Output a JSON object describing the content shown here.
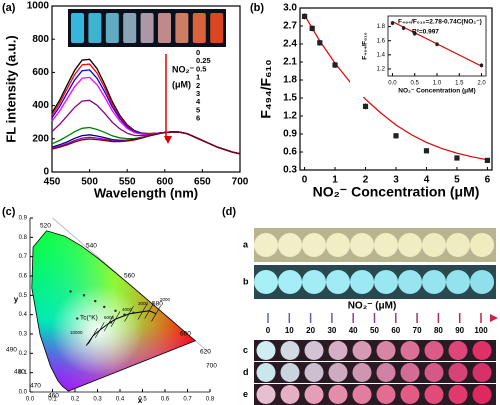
{
  "chart_data": [
    {
      "type": "line",
      "panel_label": "(a)",
      "xlabel": "Wavelength (nm)",
      "ylabel": "FL intensity (a.u.)",
      "legend_title": [
        "NO₂⁻",
        "(μM)"
      ],
      "x": [
        450,
        460,
        470,
        480,
        490,
        500,
        510,
        520,
        530,
        540,
        550,
        560,
        570,
        580,
        590,
        600,
        610,
        620,
        630,
        640,
        650,
        660,
        670,
        680,
        690,
        700
      ],
      "xlim": [
        450,
        700
      ],
      "xticks": [
        450,
        500,
        550,
        600,
        650,
        700
      ],
      "ylim": [
        0,
        1000
      ],
      "yticks": [
        0,
        200,
        400,
        600,
        800,
        1000
      ],
      "series": [
        {
          "name": "0",
          "color": "#000000",
          "values": [
            357,
            431,
            522,
            612,
            674,
            679,
            622,
            529,
            425,
            343,
            284,
            248,
            234,
            232,
            234,
            238,
            242,
            240,
            230,
            210,
            190,
            170,
            150,
            135,
            120,
            110
          ]
        },
        {
          "name": "0.25",
          "color": "#ff0000",
          "values": [
            343,
            413,
            500,
            586,
            645,
            650,
            595,
            508,
            410,
            333,
            278,
            244,
            232,
            231,
            233,
            238,
            242,
            240,
            230,
            210,
            190,
            170,
            150,
            135,
            120,
            110
          ]
        },
        {
          "name": "0.5",
          "color": "#0000ff",
          "values": [
            327,
            393,
            474,
            554,
            610,
            615,
            564,
            484,
            393,
            322,
            271,
            241,
            230,
            230,
            233,
            238,
            242,
            240,
            230,
            210,
            190,
            170,
            150,
            135,
            120,
            110
          ]
        },
        {
          "name": "1",
          "color": "#ff00ff",
          "values": [
            307,
            367,
            440,
            514,
            565,
            570,
            525,
            452,
            370,
            307,
            262,
            236,
            228,
            229,
            233,
            238,
            242,
            240,
            230,
            210,
            190,
            170,
            150,
            135,
            120,
            110
          ]
        },
        {
          "name": "2",
          "color": "#8b008b",
          "values": [
            244,
            286,
            337,
            390,
            427,
            432,
            402,
            354,
            300,
            261,
            234,
            220,
            219,
            225,
            231,
            238,
            242,
            240,
            230,
            210,
            190,
            170,
            150,
            135,
            120,
            110
          ]
        },
        {
          "name": "3",
          "color": "#008000",
          "values": [
            170,
            190,
            215,
            243,
            263,
            268,
            256,
            239,
            218,
            206,
            201,
            202,
            209,
            220,
            230,
            238,
            242,
            240,
            230,
            210,
            190,
            170,
            150,
            135,
            120,
            110
          ]
        },
        {
          "name": "4",
          "color": "#000080",
          "values": [
            150,
            164,
            181,
            203,
            219,
            224,
            217,
            207,
            195,
            191,
            192,
            197,
            207,
            218,
            229,
            238,
            242,
            240,
            230,
            210,
            190,
            170,
            150,
            135,
            120,
            110
          ]
        },
        {
          "name": "5",
          "color": "#9400d3",
          "values": [
            143,
            155,
            170,
            190,
            204,
            209,
            204,
            197,
            188,
            186,
            189,
            195,
            206,
            218,
            229,
            238,
            242,
            240,
            230,
            210,
            190,
            170,
            150,
            135,
            120,
            110
          ]
        },
        {
          "name": "6",
          "color": "#800000",
          "values": [
            138,
            149,
            163,
            181,
            194,
            199,
            195,
            190,
            183,
            183,
            187,
            194,
            205,
            218,
            229,
            238,
            242,
            240,
            230,
            210,
            190,
            170,
            150,
            135,
            120,
            110
          ]
        }
      ]
    },
    {
      "type": "scatter",
      "panel_label": "(b)",
      "xlabel": "NO₂⁻ Concentration (μM)",
      "ylabel": "F₄₉₄/F₆₁₀",
      "x": [
        0,
        0.25,
        0.5,
        1,
        2,
        3,
        4,
        5,
        6
      ],
      "xlim": [
        -0.15,
        6.15
      ],
      "xticks": [
        0,
        1,
        2,
        3,
        4,
        5,
        6
      ],
      "ylim": [
        0.3,
        3.0
      ],
      "yticks": [
        0.3,
        0.6,
        0.9,
        1.2,
        1.5,
        1.8,
        2.1,
        2.4,
        2.7,
        {
          "value": 3,
          "label": "3.0"
        }
      ],
      "series": [
        {
          "color": "#222222",
          "values": [
            2.86,
            2.66,
            2.42,
            2.05,
            1.36,
            0.87,
            0.62,
            0.5,
            0.46
          ],
          "errors": [
            0.05,
            0.05,
            0.05,
            0.05,
            0.05,
            0.04,
            0.04,
            0.03,
            0.03
          ]
        }
      ],
      "fit": {
        "color": "#e00000",
        "x": [
          0,
          0.5,
          1,
          1.5,
          2,
          2.5,
          3,
          3.5,
          4,
          4.5,
          5,
          5.5,
          6
        ],
        "values": [
          2.88,
          2.45,
          2.08,
          1.76,
          1.48,
          1.25,
          1.05,
          0.89,
          0.76,
          0.66,
          0.58,
          0.52,
          0.47
        ]
      },
      "inset": {
        "xlabel": "NO₂⁻ Concentration (μM)",
        "ylabel": "F₄₉₄/F₆₁₀",
        "equation": "F₄₉₄/F₆₁₀=2.78-0.74C(NO₂⁻)",
        "r2": "R²=0.997",
        "x": [
          0,
          0.25,
          0.5,
          1,
          2
        ],
        "xlim": [
          -0.1,
          2.1
        ],
        "xticks": [
          {
            "value": 0,
            "label": "0.0"
          },
          0.5,
          {
            "value": 1,
            "label": "1.0"
          },
          1.5,
          {
            "value": 2,
            "label": "2.0"
          }
        ],
        "ylim": [
          1.1,
          1.95
        ],
        "yticks": [
          1.2,
          1.4,
          1.6,
          1.8
        ],
        "series": [
          {
            "color": "#222222",
            "values": [
              1.85,
              1.78,
              1.7,
              1.55,
              1.25
            ],
            "errors": [
              0.03,
              0.03,
              0.03,
              0.03,
              0.03
            ]
          }
        ],
        "fit": {
          "color": "#e00000",
          "x": [
            0,
            2
          ],
          "values": [
            1.87,
            1.24
          ]
        }
      }
    },
    {
      "type": "cie",
      "panel_label": "(c)",
      "xlabel": "x",
      "ylabel": "y",
      "tc_label": "Tc(°K)",
      "wavelength_labels": [
        "520",
        "540",
        "560",
        "580",
        "600",
        "620",
        "700",
        "490",
        "480",
        "470",
        "460"
      ],
      "temperature_labels": [
        "10000",
        "6000",
        "4000",
        "3000",
        "2000"
      ],
      "color": "#222222",
      "x": [
        0.18,
        0.24,
        0.29,
        0.33,
        0.38,
        0.42,
        0.46,
        0.21,
        0.36
      ],
      "values": [
        0.52,
        0.5,
        0.47,
        0.44,
        0.42,
        0.4,
        0.41,
        0.38,
        0.36
      ],
      "xlim": [
        0,
        0.8
      ],
      "xticks": [
        {
          "value": 0,
          "label": "0.0"
        },
        0.1,
        0.2,
        0.3,
        0.4,
        0.5,
        0.6,
        0.7,
        0.8
      ],
      "ylim": [
        0,
        0.9
      ],
      "yticks": [
        {
          "value": 0,
          "label": "0.0"
        },
        0.1,
        0.2,
        0.3,
        0.4,
        0.5,
        0.6,
        0.7,
        0.8,
        0.9
      ]
    }
  ],
  "photos": {
    "panel_label": "(d)",
    "row_labels": [
      "a",
      "b",
      "c",
      "d",
      "e"
    ],
    "scale_title": "NO₂⁻ (μM)",
    "scale_values": [
      0,
      10,
      20,
      30,
      40,
      50,
      60,
      70,
      80,
      90,
      100
    ]
  }
}
